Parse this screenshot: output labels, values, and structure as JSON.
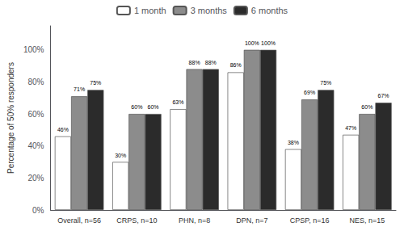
{
  "chart_data": {
    "type": "bar",
    "y_label": "Percentage of 50% responders",
    "categories": [
      "Overall, n=56",
      "CRPS, n=10",
      "PHN, n=8",
      "DPN, n=7",
      "CPSP, n=16",
      "NES, n=15"
    ],
    "series": [
      {
        "name": "1 month",
        "color": "#ffffff",
        "values": [
          46,
          30,
          63,
          86,
          38,
          47
        ],
        "value_labels": [
          "46%",
          "30%",
          "63%",
          "86%",
          "38%",
          "47%"
        ]
      },
      {
        "name": "3 months",
        "color": "#8c8c8c",
        "values": [
          71,
          60,
          88,
          100,
          69,
          60
        ],
        "value_labels": [
          "71%",
          "60%",
          "88%",
          "100%",
          "69%",
          "60%"
        ]
      },
      {
        "name": "6 months",
        "color": "#2b2b2b",
        "values": [
          75,
          60,
          88,
          100,
          75,
          67
        ],
        "value_labels": [
          "75%",
          "60%",
          "88%",
          "100%",
          "75%",
          "67%"
        ]
      }
    ],
    "ylim": [
      0,
      115
    ],
    "yticks": [
      {
        "value": 0,
        "label": "0%"
      },
      {
        "value": 20,
        "label": "20%"
      },
      {
        "value": 40,
        "label": "40%"
      },
      {
        "value": 60,
        "label": "60%"
      },
      {
        "value": 80,
        "label": "80%"
      },
      {
        "value": 100,
        "label": "100%"
      }
    ],
    "grid": false,
    "legend": "top",
    "data_labels": true
  }
}
